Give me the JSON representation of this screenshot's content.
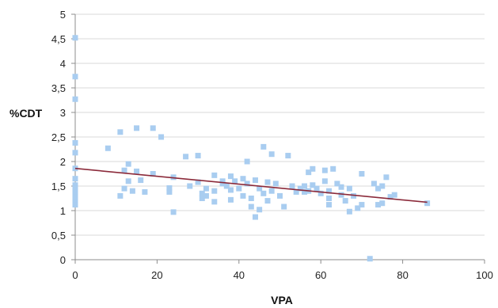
{
  "chart_data": {
    "type": "scatter",
    "xlabel": "VPA",
    "ylabel": "%CDT",
    "xlim": [
      0,
      100
    ],
    "ylim": [
      0,
      5
    ],
    "x_ticks": [
      0,
      20,
      40,
      60,
      80,
      100
    ],
    "x_tick_labels": [
      "0",
      "20",
      "40",
      "60",
      "80",
      "100"
    ],
    "y_ticks": [
      0,
      0.5,
      1,
      1.5,
      2,
      2.5,
      3,
      3.5,
      4,
      4.5,
      5
    ],
    "y_tick_labels": [
      "0",
      "0,5",
      "1",
      "1,5",
      "2",
      "2,5",
      "3",
      "3,5",
      "4",
      "4,5",
      "5"
    ],
    "grid": "horizontal",
    "legend": "none",
    "colors": {
      "points": "#a9cdf0",
      "trendline": "#8b2a3a",
      "gridlines": "#d9d9d9",
      "axis": "#8c8c8c"
    },
    "trendline": {
      "x": [
        0,
        86
      ],
      "y": [
        1.86,
        1.17
      ]
    },
    "points": [
      {
        "x": 0,
        "y": 4.52
      },
      {
        "x": 0,
        "y": 3.73
      },
      {
        "x": 0,
        "y": 3.27
      },
      {
        "x": 0,
        "y": 2.38
      },
      {
        "x": 0,
        "y": 2.18
      },
      {
        "x": 0,
        "y": 1.86
      },
      {
        "x": 0,
        "y": 1.65
      },
      {
        "x": 0,
        "y": 1.52
      },
      {
        "x": 0,
        "y": 1.45
      },
      {
        "x": 0,
        "y": 1.38
      },
      {
        "x": 0,
        "y": 1.32
      },
      {
        "x": 0,
        "y": 1.27
      },
      {
        "x": 0,
        "y": 1.22
      },
      {
        "x": 0,
        "y": 1.18
      },
      {
        "x": 0,
        "y": 1.12
      },
      {
        "x": 8,
        "y": 2.27
      },
      {
        "x": 11,
        "y": 2.6
      },
      {
        "x": 11,
        "y": 1.3
      },
      {
        "x": 12,
        "y": 1.82
      },
      {
        "x": 12,
        "y": 1.45
      },
      {
        "x": 13,
        "y": 1.95
      },
      {
        "x": 13,
        "y": 1.6
      },
      {
        "x": 14,
        "y": 1.4
      },
      {
        "x": 15,
        "y": 2.68
      },
      {
        "x": 15,
        "y": 1.8
      },
      {
        "x": 16,
        "y": 1.62
      },
      {
        "x": 17,
        "y": 1.38
      },
      {
        "x": 19,
        "y": 2.68
      },
      {
        "x": 19,
        "y": 1.75
      },
      {
        "x": 21,
        "y": 2.5
      },
      {
        "x": 23,
        "y": 1.46
      },
      {
        "x": 23,
        "y": 1.38
      },
      {
        "x": 24,
        "y": 1.68
      },
      {
        "x": 24,
        "y": 0.97
      },
      {
        "x": 27,
        "y": 2.1
      },
      {
        "x": 28,
        "y": 1.5
      },
      {
        "x": 30,
        "y": 2.12
      },
      {
        "x": 30,
        "y": 1.58
      },
      {
        "x": 31,
        "y": 1.35
      },
      {
        "x": 31,
        "y": 1.25
      },
      {
        "x": 32,
        "y": 1.45
      },
      {
        "x": 32,
        "y": 1.3
      },
      {
        "x": 34,
        "y": 1.72
      },
      {
        "x": 34,
        "y": 1.4
      },
      {
        "x": 34,
        "y": 1.18
      },
      {
        "x": 36,
        "y": 1.6
      },
      {
        "x": 36,
        "y": 1.55
      },
      {
        "x": 37,
        "y": 1.5
      },
      {
        "x": 38,
        "y": 1.7
      },
      {
        "x": 38,
        "y": 1.42
      },
      {
        "x": 38,
        "y": 1.22
      },
      {
        "x": 39,
        "y": 1.6
      },
      {
        "x": 40,
        "y": 1.45
      },
      {
        "x": 41,
        "y": 1.65
      },
      {
        "x": 41,
        "y": 1.3
      },
      {
        "x": 42,
        "y": 2.0
      },
      {
        "x": 42,
        "y": 1.55
      },
      {
        "x": 43,
        "y": 1.25
      },
      {
        "x": 43,
        "y": 1.08
      },
      {
        "x": 44,
        "y": 1.62
      },
      {
        "x": 44,
        "y": 0.87
      },
      {
        "x": 45,
        "y": 1.45
      },
      {
        "x": 45,
        "y": 1.02
      },
      {
        "x": 46,
        "y": 2.3
      },
      {
        "x": 46,
        "y": 1.35
      },
      {
        "x": 47,
        "y": 1.58
      },
      {
        "x": 47,
        "y": 1.2
      },
      {
        "x": 48,
        "y": 2.15
      },
      {
        "x": 48,
        "y": 1.4
      },
      {
        "x": 49,
        "y": 1.55
      },
      {
        "x": 50,
        "y": 1.3
      },
      {
        "x": 51,
        "y": 1.08
      },
      {
        "x": 52,
        "y": 2.12
      },
      {
        "x": 53,
        "y": 1.5
      },
      {
        "x": 54,
        "y": 1.38
      },
      {
        "x": 55,
        "y": 1.45
      },
      {
        "x": 56,
        "y": 1.5
      },
      {
        "x": 56,
        "y": 1.38
      },
      {
        "x": 57,
        "y": 1.78
      },
      {
        "x": 57,
        "y": 1.4
      },
      {
        "x": 58,
        "y": 1.85
      },
      {
        "x": 58,
        "y": 1.52
      },
      {
        "x": 59,
        "y": 1.45
      },
      {
        "x": 60,
        "y": 1.35
      },
      {
        "x": 61,
        "y": 1.82
      },
      {
        "x": 61,
        "y": 1.6
      },
      {
        "x": 62,
        "y": 1.4
      },
      {
        "x": 62,
        "y": 1.25
      },
      {
        "x": 62,
        "y": 1.12
      },
      {
        "x": 63,
        "y": 1.85
      },
      {
        "x": 64,
        "y": 1.55
      },
      {
        "x": 65,
        "y": 1.48
      },
      {
        "x": 65,
        "y": 1.32
      },
      {
        "x": 66,
        "y": 1.2
      },
      {
        "x": 67,
        "y": 1.45
      },
      {
        "x": 67,
        "y": 0.98
      },
      {
        "x": 68,
        "y": 1.3
      },
      {
        "x": 69,
        "y": 1.05
      },
      {
        "x": 70,
        "y": 1.75
      },
      {
        "x": 70,
        "y": 1.12
      },
      {
        "x": 72,
        "y": 0.02
      },
      {
        "x": 73,
        "y": 1.55
      },
      {
        "x": 74,
        "y": 1.45
      },
      {
        "x": 74,
        "y": 1.12
      },
      {
        "x": 75,
        "y": 1.5
      },
      {
        "x": 75,
        "y": 1.15
      },
      {
        "x": 76,
        "y": 1.68
      },
      {
        "x": 77,
        "y": 1.28
      },
      {
        "x": 78,
        "y": 1.32
      },
      {
        "x": 86,
        "y": 1.15
      }
    ]
  }
}
